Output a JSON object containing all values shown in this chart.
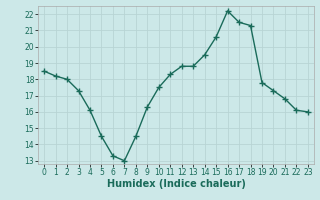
{
  "x": [
    0,
    1,
    2,
    3,
    4,
    5,
    6,
    7,
    8,
    9,
    10,
    11,
    12,
    13,
    14,
    15,
    16,
    17,
    18,
    19,
    20,
    21,
    22,
    23
  ],
  "y": [
    18.5,
    18.2,
    18.0,
    17.3,
    16.1,
    14.5,
    13.3,
    13.0,
    14.5,
    16.3,
    17.5,
    18.3,
    18.8,
    18.8,
    19.5,
    20.6,
    22.2,
    21.5,
    21.3,
    17.8,
    17.3,
    16.8,
    16.1,
    16.0
  ],
  "line_color": "#1a6b5a",
  "marker": "+",
  "marker_size": 4,
  "bg_color": "#cce8e8",
  "grid_color": "#b8d4d4",
  "xlabel": "Humidex (Indice chaleur)",
  "xlim": [
    -0.5,
    23.5
  ],
  "ylim": [
    12.8,
    22.5
  ],
  "yticks": [
    13,
    14,
    15,
    16,
    17,
    18,
    19,
    20,
    21,
    22
  ],
  "xticks": [
    0,
    1,
    2,
    3,
    4,
    5,
    6,
    7,
    8,
    9,
    10,
    11,
    12,
    13,
    14,
    15,
    16,
    17,
    18,
    19,
    20,
    21,
    22,
    23
  ],
  "tick_fontsize": 5.5,
  "xlabel_fontsize": 7,
  "linewidth": 1.0,
  "marker_linewidth": 1.0
}
